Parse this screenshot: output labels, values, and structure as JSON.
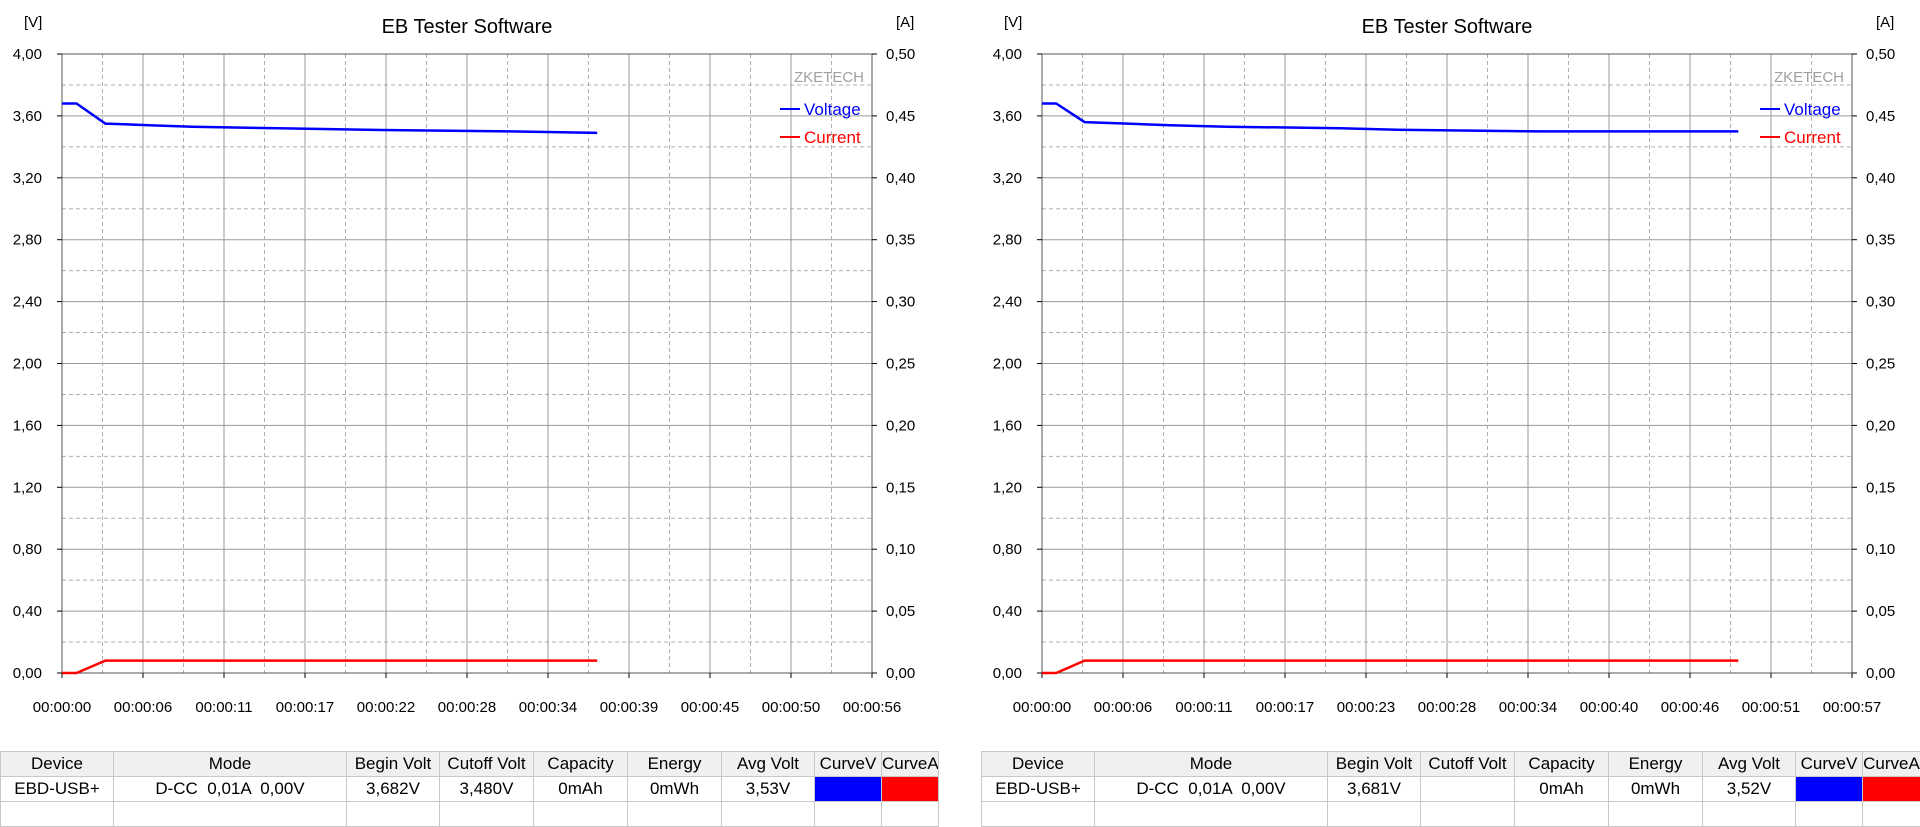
{
  "colors": {
    "voltage": "#0000ff",
    "current": "#ff0000",
    "grid": "#9a9a9a"
  },
  "table_headers": [
    "Device",
    "Mode",
    "Begin Volt",
    "Cutoff Volt",
    "Capacity",
    "Energy",
    "Avg Volt",
    "CurveV",
    "CurveA"
  ],
  "chart_data": [
    {
      "type": "line",
      "title": "EB Tester Software",
      "watermark": "ZKETECH",
      "left_unit": "[V]",
      "right_unit": "[A]",
      "left_ticks": [
        "4,00",
        "3,60",
        "3,20",
        "2,80",
        "2,40",
        "2,00",
        "1,60",
        "1,20",
        "0,80",
        "0,40",
        "0,00"
      ],
      "right_ticks": [
        "0,50",
        "0,45",
        "0,40",
        "0,35",
        "0,30",
        "0,25",
        "0,20",
        "0,15",
        "0,10",
        "0,05",
        "0,00"
      ],
      "ylim_left": [
        0,
        4.0
      ],
      "ylim_right": [
        0,
        0.5
      ],
      "x_ticks": [
        "00:00:00",
        "00:00:06",
        "00:00:11",
        "00:00:17",
        "00:00:22",
        "00:00:28",
        "00:00:34",
        "00:00:39",
        "00:00:45",
        "00:00:50",
        "00:00:56"
      ],
      "xlim": [
        0,
        56
      ],
      "grid": true,
      "legend_placement": "top-right",
      "series": [
        {
          "name": "Voltage",
          "axis": "left",
          "color": "#0000ff",
          "x": [
            0,
            1,
            3,
            6,
            9,
            15,
            21,
            31,
            37
          ],
          "y": [
            3.68,
            3.68,
            3.55,
            3.54,
            3.53,
            3.52,
            3.51,
            3.5,
            3.49
          ]
        },
        {
          "name": "Current",
          "axis": "right",
          "color": "#ff0000",
          "x": [
            0,
            1,
            3,
            37
          ],
          "y": [
            0.0,
            0.0,
            0.01,
            0.01
          ]
        }
      ],
      "table": {
        "device": "EBD-USB+",
        "mode": "D-CC  0,01A  0,00V",
        "begin_volt": "3,682V",
        "cutoff_volt": "3,480V",
        "capacity": "0mAh",
        "energy": "0mWh",
        "avg_volt": "3,53V"
      }
    },
    {
      "type": "line",
      "title": "EB Tester Software",
      "watermark": "ZKETECH",
      "left_unit": "[V]",
      "right_unit": "[A]",
      "left_ticks": [
        "4,00",
        "3,60",
        "3,20",
        "2,80",
        "2,40",
        "2,00",
        "1,60",
        "1,20",
        "0,80",
        "0,40",
        "0,00"
      ],
      "right_ticks": [
        "0,50",
        "0,45",
        "0,40",
        "0,35",
        "0,30",
        "0,25",
        "0,20",
        "0,15",
        "0,10",
        "0,05",
        "0,00"
      ],
      "ylim_left": [
        0,
        4.0
      ],
      "ylim_right": [
        0,
        0.5
      ],
      "x_ticks": [
        "00:00:00",
        "00:00:06",
        "00:00:11",
        "00:00:17",
        "00:00:23",
        "00:00:28",
        "00:00:34",
        "00:00:40",
        "00:00:46",
        "00:00:51",
        "00:00:57"
      ],
      "xlim": [
        0,
        57
      ],
      "grid": true,
      "legend_placement": "top-right",
      "series": [
        {
          "name": "Voltage",
          "axis": "left",
          "color": "#0000ff",
          "x": [
            0,
            1,
            3,
            6,
            9,
            13,
            21,
            25,
            35,
            49
          ],
          "y": [
            3.68,
            3.68,
            3.56,
            3.55,
            3.54,
            3.53,
            3.52,
            3.51,
            3.5,
            3.5
          ]
        },
        {
          "name": "Current",
          "axis": "right",
          "color": "#ff0000",
          "x": [
            0,
            1,
            3,
            49
          ],
          "y": [
            0.0,
            0.0,
            0.01,
            0.01
          ]
        }
      ],
      "table": {
        "device": "EBD-USB+",
        "mode": "D-CC  0,01A  0,00V",
        "begin_volt": "3,681V",
        "cutoff_volt": "",
        "capacity": "0mAh",
        "energy": "0mWh",
        "avg_volt": "3,52V"
      }
    }
  ]
}
